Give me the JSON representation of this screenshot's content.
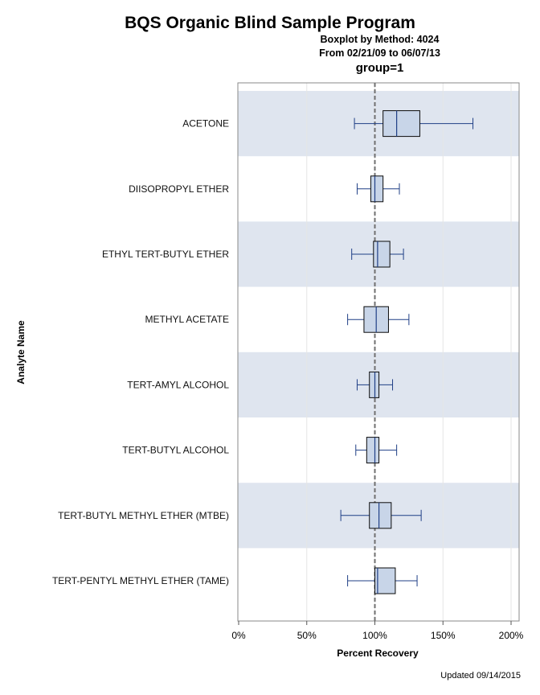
{
  "title": "BQS Organic Blind Sample Program",
  "subtitle1": "Boxplot by Method: 4024",
  "subtitle2": "From 02/21/09 to 06/07/13",
  "group_label": "group=1",
  "footer": "Updated 09/14/2015",
  "colors": {
    "band": "#dfe5ef",
    "box_fill": "#c8d5e8",
    "box_stroke": "#0a0a0a",
    "whisker": "#1f3f86",
    "reference_line": "#707070",
    "grid": "#e6e6e6"
  },
  "chart_data": {
    "type": "boxplot",
    "orientation": "horizontal",
    "xlabel": "Percent Recovery",
    "ylabel": "Analyte Name",
    "xlim": [
      0,
      205
    ],
    "xticks": [
      0,
      50,
      100,
      150,
      200
    ],
    "xtick_labels": [
      "0%",
      "50%",
      "100%",
      "150%",
      "200%"
    ],
    "reference_line": 100,
    "grid": true,
    "alternating_bands": true,
    "categories": [
      "ACETONE",
      "DIISOPROPYL ETHER",
      "ETHYL TERT-BUTYL ETHER",
      "METHYL ACETATE",
      "TERT-AMYL ALCOHOL",
      "TERT-BUTYL ALCOHOL",
      "TERT-BUTYL METHYL ETHER (MTBE)",
      "TERT-PENTYL METHYL ETHER (TAME)"
    ],
    "boxes": [
      {
        "min": 85,
        "q1": 106,
        "median": 116,
        "q3": 133,
        "max": 172
      },
      {
        "min": 87,
        "q1": 97,
        "median": 100,
        "q3": 106,
        "max": 118
      },
      {
        "min": 83,
        "q1": 99,
        "median": 102,
        "q3": 111,
        "max": 121
      },
      {
        "min": 80,
        "q1": 92,
        "median": 101,
        "q3": 110,
        "max": 125
      },
      {
        "min": 87,
        "q1": 96,
        "median": 100,
        "q3": 103,
        "max": 113
      },
      {
        "min": 86,
        "q1": 94,
        "median": 100,
        "q3": 103,
        "max": 116
      },
      {
        "min": 75,
        "q1": 96,
        "median": 103,
        "q3": 112,
        "max": 134
      },
      {
        "min": 80,
        "q1": 100,
        "median": 102,
        "q3": 115,
        "max": 131
      }
    ]
  }
}
